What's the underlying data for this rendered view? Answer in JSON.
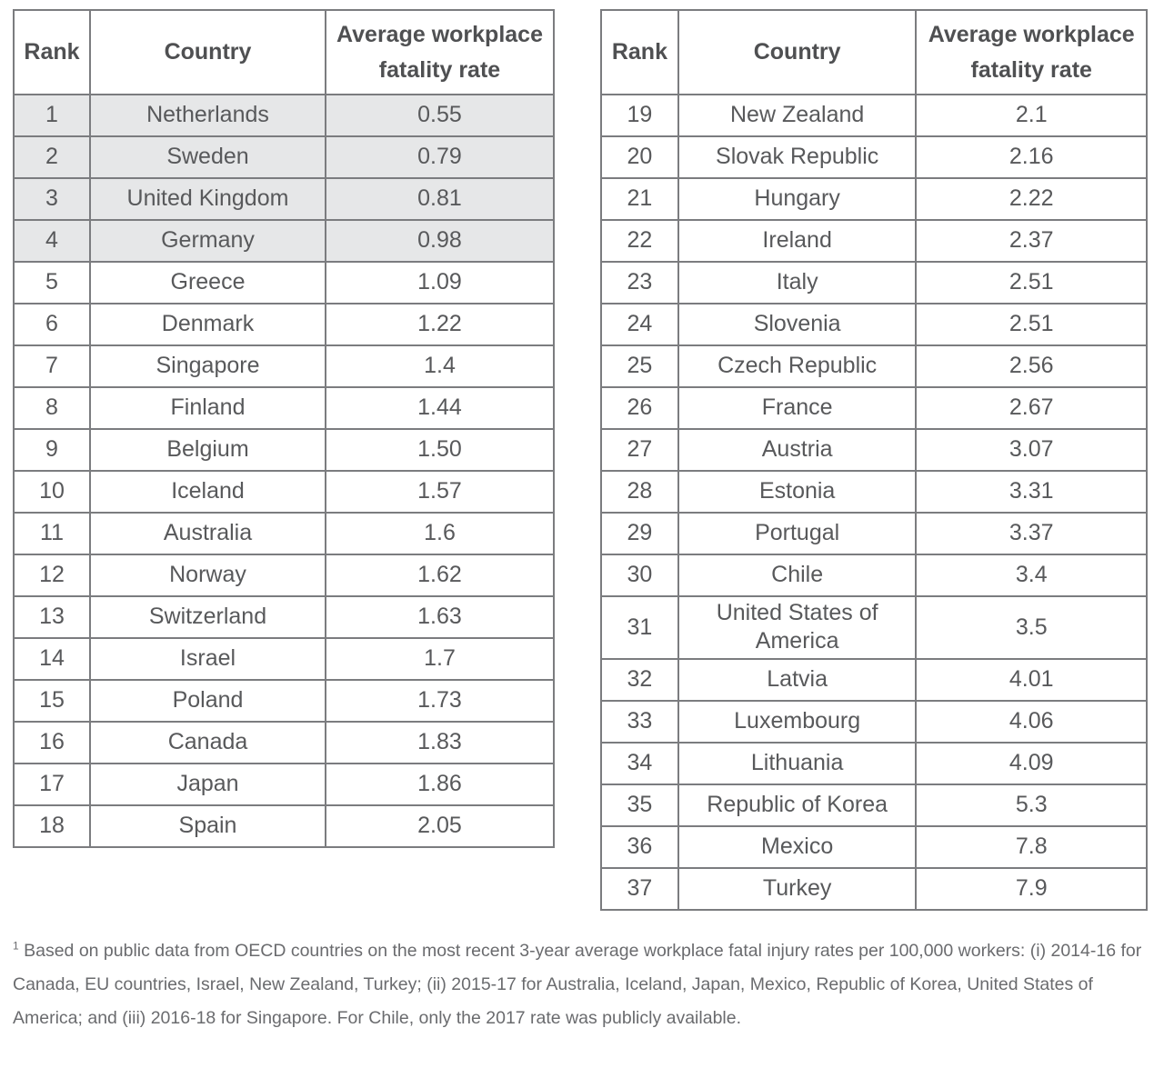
{
  "columns": {
    "rank": "Rank",
    "country": "Country",
    "rate": "Average workplace fatality rate"
  },
  "colors": {
    "border": "#7b7c7f",
    "header_text": "#4f5052",
    "body_text": "#58595b",
    "shaded_row": "#e6e7e8",
    "footnote_text": "#6a6b6e"
  },
  "tables": [
    {
      "name": "left",
      "rows": [
        {
          "rank": "1",
          "country": "Netherlands",
          "rate": "0.55",
          "shaded": true
        },
        {
          "rank": "2",
          "country": "Sweden",
          "rate": "0.79",
          "shaded": true
        },
        {
          "rank": "3",
          "country": "United Kingdom",
          "rate": "0.81",
          "shaded": true
        },
        {
          "rank": "4",
          "country": "Germany",
          "rate": "0.98",
          "shaded": true
        },
        {
          "rank": "5",
          "country": "Greece",
          "rate": "1.09",
          "shaded": false
        },
        {
          "rank": "6",
          "country": "Denmark",
          "rate": "1.22",
          "shaded": false
        },
        {
          "rank": "7",
          "country": "Singapore",
          "rate": "1.4",
          "shaded": false
        },
        {
          "rank": "8",
          "country": "Finland",
          "rate": "1.44",
          "shaded": false
        },
        {
          "rank": "9",
          "country": "Belgium",
          "rate": "1.50",
          "shaded": false
        },
        {
          "rank": "10",
          "country": "Iceland",
          "rate": "1.57",
          "shaded": false
        },
        {
          "rank": "11",
          "country": "Australia",
          "rate": "1.6",
          "shaded": false
        },
        {
          "rank": "12",
          "country": "Norway",
          "rate": "1.62",
          "shaded": false
        },
        {
          "rank": "13",
          "country": "Switzerland",
          "rate": "1.63",
          "shaded": false
        },
        {
          "rank": "14",
          "country": "Israel",
          "rate": "1.7",
          "shaded": false
        },
        {
          "rank": "15",
          "country": "Poland",
          "rate": "1.73",
          "shaded": false
        },
        {
          "rank": "16",
          "country": "Canada",
          "rate": "1.83",
          "shaded": false
        },
        {
          "rank": "17",
          "country": "Japan",
          "rate": "1.86",
          "shaded": false
        },
        {
          "rank": "18",
          "country": "Spain",
          "rate": "2.05",
          "shaded": false
        }
      ]
    },
    {
      "name": "right",
      "rows": [
        {
          "rank": "19",
          "country": "New Zealand",
          "rate": "2.1",
          "shaded": false
        },
        {
          "rank": "20",
          "country": "Slovak Republic",
          "rate": "2.16",
          "shaded": false
        },
        {
          "rank": "21",
          "country": "Hungary",
          "rate": "2.22",
          "shaded": false
        },
        {
          "rank": "22",
          "country": "Ireland",
          "rate": "2.37",
          "shaded": false
        },
        {
          "rank": "23",
          "country": "Italy",
          "rate": "2.51",
          "shaded": false
        },
        {
          "rank": "24",
          "country": "Slovenia",
          "rate": "2.51",
          "shaded": false
        },
        {
          "rank": "25",
          "country": "Czech Republic",
          "rate": "2.56",
          "shaded": false
        },
        {
          "rank": "26",
          "country": "France",
          "rate": "2.67",
          "shaded": false
        },
        {
          "rank": "27",
          "country": "Austria",
          "rate": "3.07",
          "shaded": false
        },
        {
          "rank": "28",
          "country": "Estonia",
          "rate": "3.31",
          "shaded": false
        },
        {
          "rank": "29",
          "country": "Portugal",
          "rate": "3.37",
          "shaded": false
        },
        {
          "rank": "30",
          "country": "Chile",
          "rate": "3.4",
          "shaded": false
        },
        {
          "rank": "31",
          "country": "United States of America",
          "rate": "3.5",
          "shaded": false
        },
        {
          "rank": "32",
          "country": "Latvia",
          "rate": "4.01",
          "shaded": false
        },
        {
          "rank": "33",
          "country": "Luxembourg",
          "rate": "4.06",
          "shaded": false
        },
        {
          "rank": "34",
          "country": "Lithuania",
          "rate": "4.09",
          "shaded": false
        },
        {
          "rank": "35",
          "country": "Republic of Korea",
          "rate": "5.3",
          "shaded": false
        },
        {
          "rank": "36",
          "country": "Mexico",
          "rate": "7.8",
          "shaded": false
        },
        {
          "rank": "37",
          "country": "Turkey",
          "rate": "7.9",
          "shaded": false
        }
      ]
    }
  ],
  "footnote": {
    "marker": "1",
    "text": "Based on public data from OECD countries on the most recent 3-year average workplace fatal injury rates per 100,000 workers: (i) 2014-16 for Canada, EU countries, Israel, New Zealand, Turkey; (ii) 2015-17 for Australia, Iceland, Japan, Mexico, Republic of Korea, United States of America; and (iii) 2016-18 for Singapore. For Chile, only the 2017 rate was publicly available."
  }
}
